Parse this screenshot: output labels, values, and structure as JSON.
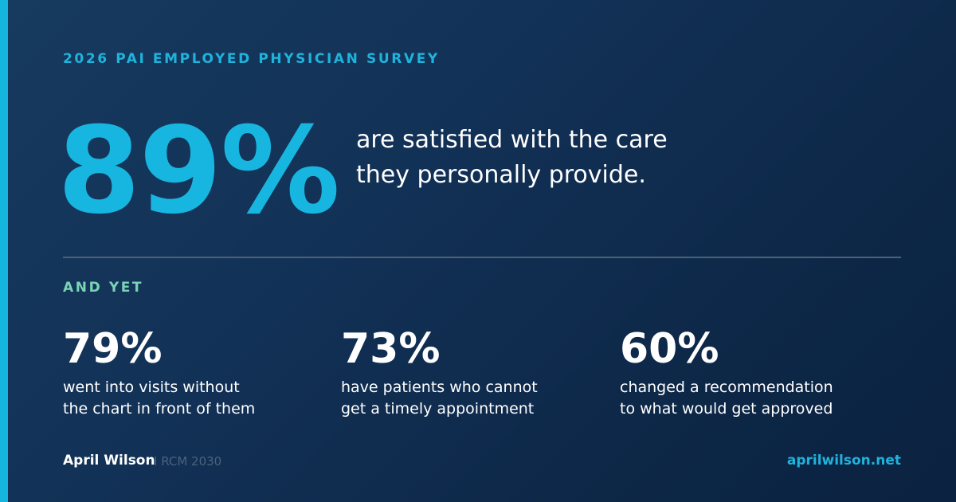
{
  "eyebrow": "2026 PAI EMPLOYED PHYSICIAN SURVEY",
  "hero": {
    "value": "89%",
    "lines": [
      "are satisfied with the care",
      "they personally provide."
    ]
  },
  "subhead": "AND YET",
  "stats": [
    {
      "value": "79%",
      "lines": [
        "went into visits without",
        "the chart in front of them"
      ]
    },
    {
      "value": "73%",
      "lines": [
        "have patients who cannot",
        "get a timely appointment"
      ]
    },
    {
      "value": "60%",
      "lines": [
        "changed a recommendation",
        "to what would get approved"
      ]
    }
  ],
  "footer": {
    "name": "April Wilson",
    "tag": "I RCM 2030",
    "url": "aprilwilson.net"
  },
  "colors": {
    "accent": "#15b6dd",
    "subhead": "#7bd3b7",
    "background": "#123156"
  }
}
